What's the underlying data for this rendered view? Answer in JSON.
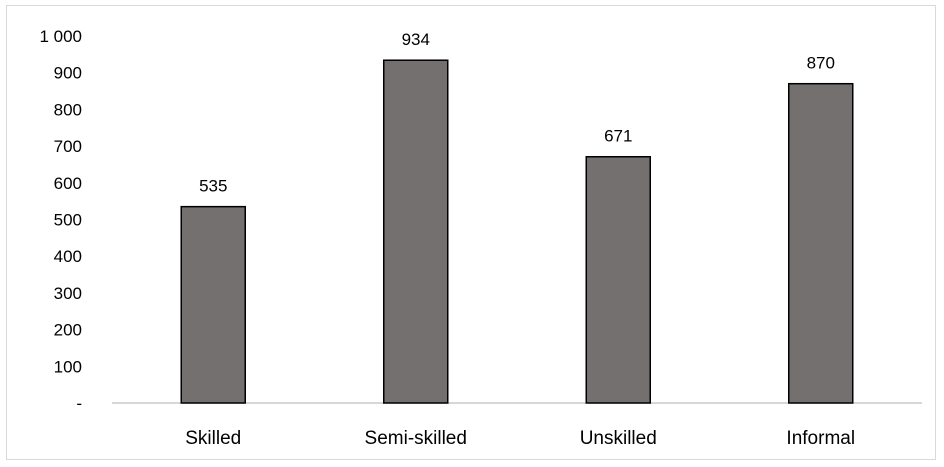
{
  "chart_data": {
    "type": "bar",
    "title": "",
    "xlabel": "",
    "ylabel": "",
    "categories": [
      "Skilled",
      "Semi-skilled",
      "Unskilled",
      "Informal"
    ],
    "values": [
      535,
      934,
      671,
      870
    ],
    "data_labels": [
      "535",
      "934",
      "671",
      "870"
    ],
    "ylim": [
      0,
      1000
    ],
    "yticks": [
      0,
      100,
      200,
      300,
      400,
      500,
      600,
      700,
      800,
      900,
      1000
    ],
    "ytick_labels": [
      "-",
      "100",
      "200",
      "300",
      "400",
      "500",
      "600",
      "700",
      "800",
      "900",
      "1 000"
    ],
    "grid": false,
    "legend": "none",
    "bar_color": "#747070",
    "bar_edge_color": "#000000",
    "axis_color": "#bfbfbf"
  }
}
